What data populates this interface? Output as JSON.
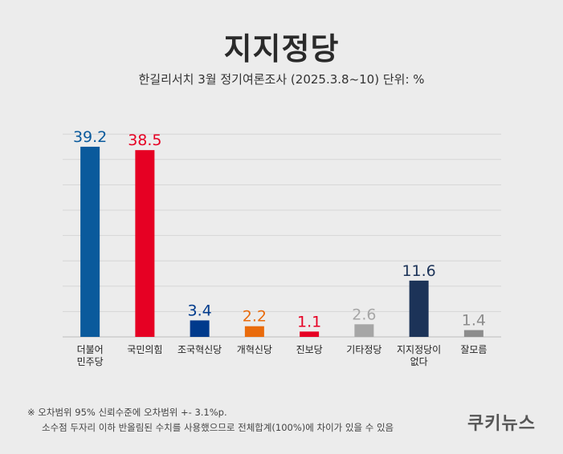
{
  "title": "지지정당",
  "subtitle": "한길리서치 3월 정기여론조사 (2025.3.8~10) 단위: %",
  "notes": {
    "line1": "※ 오차범위 95% 신뢰수준에 오차범위 +- 3.1%p.",
    "line2": "소수점 두자리 이하 반올림된 수치를 사용했으므로 전체합계(100%)에 차이가 있을 수 있음"
  },
  "logo": "쿠키뉴스",
  "chart_data": {
    "type": "bar",
    "categories": [
      [
        "더불어",
        "민주당"
      ],
      [
        "국민의힘"
      ],
      [
        "조국혁신당"
      ],
      [
        "개혁신당"
      ],
      [
        "진보당"
      ],
      [
        "기타정당"
      ],
      [
        "지지정당이",
        "없다"
      ],
      [
        "잘모름"
      ]
    ],
    "values": [
      39.2,
      38.5,
      3.4,
      2.2,
      1.1,
      2.6,
      11.6,
      1.4
    ],
    "value_labels": [
      "39.2",
      "38.5",
      "3.4",
      "2.2",
      "1.1",
      "2.6",
      "11.6",
      "1.4"
    ],
    "colors": [
      "#0a5a9c",
      "#e60023",
      "#003a8c",
      "#e96b0c",
      "#e60023",
      "#a6a6a6",
      "#1c3358",
      "#8c8c8c"
    ],
    "ylim": [
      0,
      42
    ],
    "grid": true
  }
}
